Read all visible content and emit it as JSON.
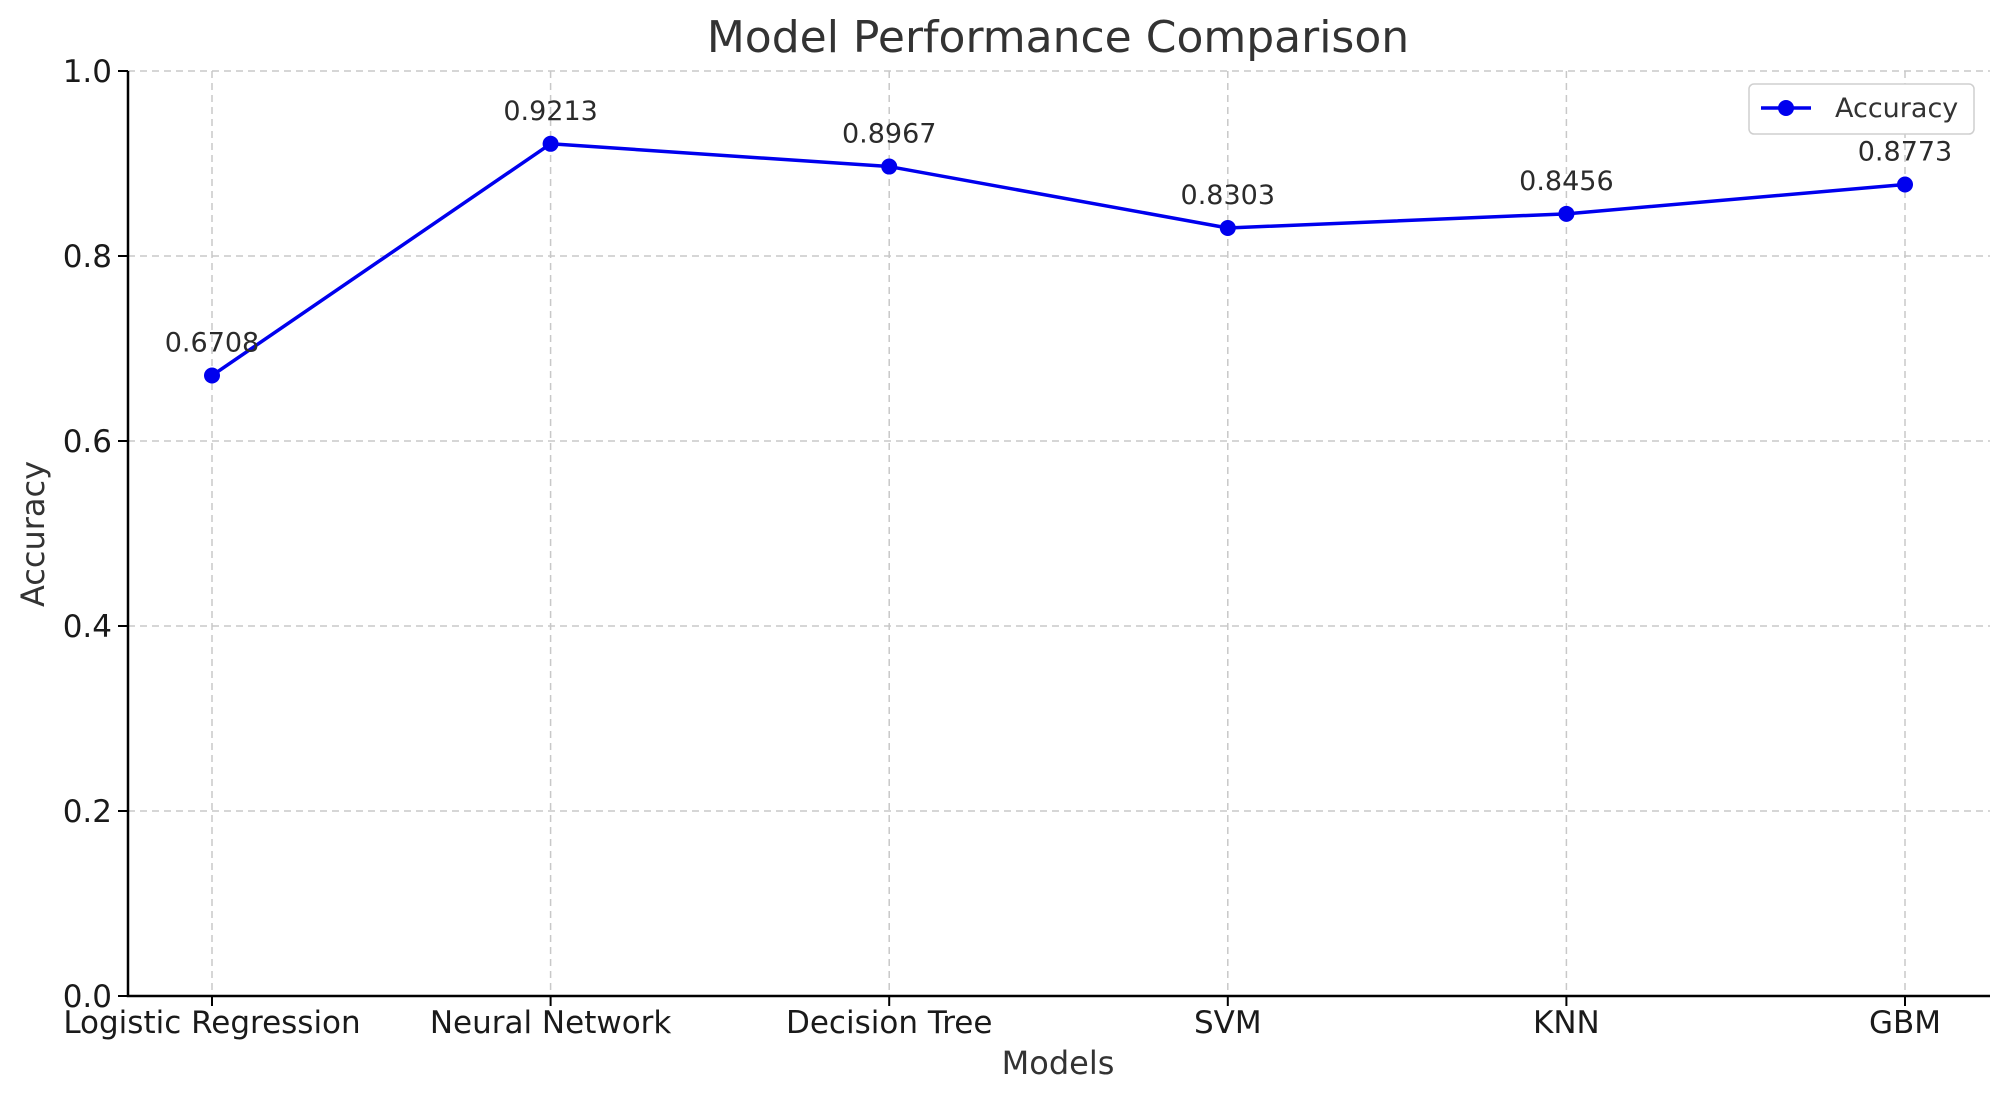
{
  "chart_data": {
    "type": "line",
    "title": "Model Performance Comparison",
    "xlabel": "Models",
    "ylabel": "Accuracy",
    "categories": [
      "Logistic Regression",
      "Neural Network",
      "Decision Tree",
      "SVM",
      "KNN",
      "GBM"
    ],
    "series": [
      {
        "name": "Accuracy",
        "values": [
          0.6708,
          0.9213,
          0.8967,
          0.8303,
          0.8456,
          0.8773
        ],
        "value_labels": [
          "0.6708",
          "0.9213",
          "0.8967",
          "0.8303",
          "0.8456",
          "0.8773"
        ],
        "color": "#0000ee",
        "marker": "circle"
      }
    ],
    "ylim": [
      0,
      1.0
    ],
    "yticks": [
      0.0,
      0.2,
      0.4,
      0.6,
      0.8,
      1.0
    ],
    "ytick_labels": [
      "0.0",
      "0.2",
      "0.4",
      "0.6",
      "0.8",
      "1.0"
    ],
    "grid": true,
    "legend_position": "top-right"
  }
}
